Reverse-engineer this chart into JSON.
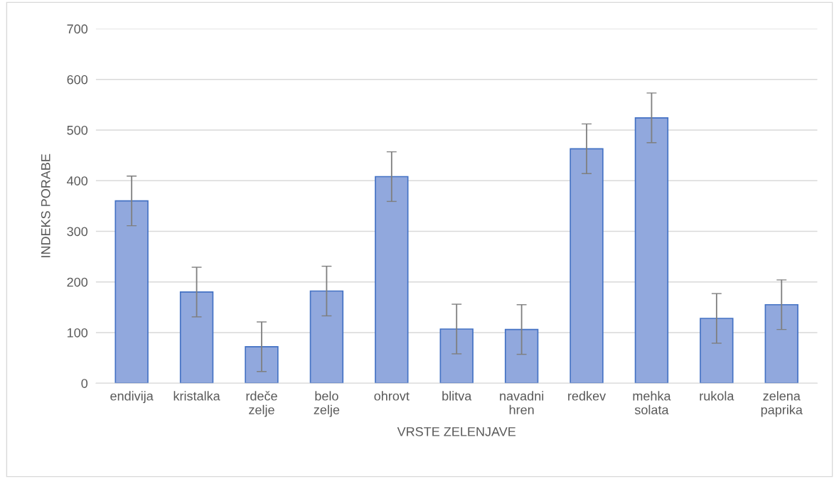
{
  "chart_data": {
    "type": "bar",
    "xlabel": "VRSTE ZELENJAVE",
    "ylabel": "INDEKS PORABE",
    "categories": [
      "endivija",
      "kristalka",
      "rdeče zelje",
      "belo zelje",
      "ohrovt",
      "blitva",
      "navadni hren",
      "redkev",
      "mehka solata",
      "rukola",
      "zelena paprika"
    ],
    "values": [
      360,
      180,
      72,
      182,
      408,
      107,
      106,
      463,
      524,
      128,
      155
    ],
    "errors": [
      49,
      49,
      49,
      49,
      49,
      49,
      49,
      49,
      49,
      49,
      49
    ],
    "color": "#91a8dd",
    "ylim": [
      0,
      700
    ],
    "yticks": [
      0,
      100,
      200,
      300,
      400,
      500,
      600,
      700
    ],
    "grid": "y",
    "legend": false
  }
}
